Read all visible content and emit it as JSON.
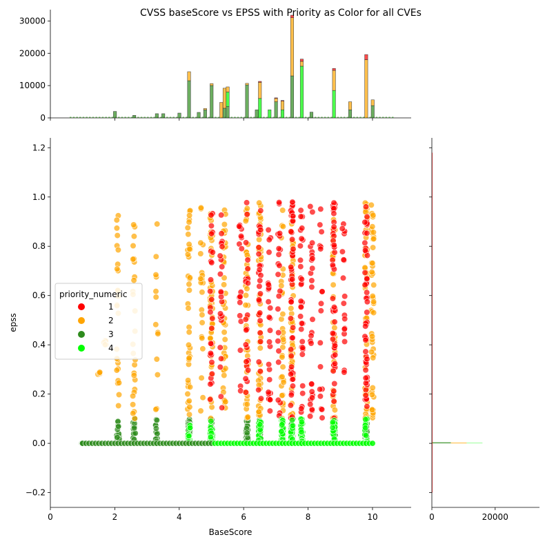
{
  "chart_data": {
    "type": "scatter",
    "title": "CVSS baseScore vs EPSS with Priority as Color for all CVEs",
    "xlabel": "BaseScore",
    "ylabel": "epss",
    "xlim": [
      0,
      11.2
    ],
    "ylim": [
      -0.26,
      1.24
    ],
    "x_ticks": [
      0,
      2,
      4,
      6,
      8,
      10
    ],
    "y_ticks": [
      -0.2,
      0.0,
      0.2,
      0.4,
      0.6,
      0.8,
      1.0,
      1.2
    ],
    "y_tick_labels": [
      "−0.2",
      "0.0",
      "0.2",
      "0.4",
      "0.6",
      "0.8",
      "1.0",
      "1.2"
    ],
    "legend": {
      "title": "priority_numeric",
      "placement": "center-left",
      "entries": [
        {
          "label": "1",
          "color": "#ff0000"
        },
        {
          "label": "2",
          "color": "#ffa500"
        },
        {
          "label": "3",
          "color": "#2e8b1d"
        },
        {
          "label": "4",
          "color": "#00ff00"
        }
      ]
    },
    "series": [
      {
        "name": "1",
        "color": "#ff0000",
        "columns": [
          {
            "x": 5.0,
            "ymin": 0.1,
            "ymax": 0.98,
            "density": 0.5
          },
          {
            "x": 5.3,
            "ymin": 0.1,
            "ymax": 0.98,
            "density": 0.4
          },
          {
            "x": 5.9,
            "ymin": 0.2,
            "ymax": 0.98,
            "density": 0.3
          },
          {
            "x": 6.1,
            "ymin": 0.1,
            "ymax": 0.98,
            "density": 0.4
          },
          {
            "x": 6.5,
            "ymin": 0.1,
            "ymax": 0.98,
            "density": 0.5
          },
          {
            "x": 6.8,
            "ymin": 0.1,
            "ymax": 0.98,
            "density": 0.5
          },
          {
            "x": 7.1,
            "ymin": 0.1,
            "ymax": 0.98,
            "density": 0.4
          },
          {
            "x": 7.5,
            "ymin": 0.1,
            "ymax": 0.98,
            "density": 1.0
          },
          {
            "x": 7.8,
            "ymin": 0.1,
            "ymax": 0.98,
            "density": 0.6
          },
          {
            "x": 8.1,
            "ymin": 0.1,
            "ymax": 0.98,
            "density": 0.5
          },
          {
            "x": 8.4,
            "ymin": 0.1,
            "ymax": 0.98,
            "density": 0.3
          },
          {
            "x": 8.8,
            "ymin": 0.1,
            "ymax": 0.98,
            "density": 1.0
          },
          {
            "x": 9.1,
            "ymin": 0.2,
            "ymax": 0.98,
            "density": 0.3
          },
          {
            "x": 9.8,
            "ymin": 0.1,
            "ymax": 0.98,
            "density": 1.0
          }
        ]
      },
      {
        "name": "2",
        "color": "#ffa500",
        "columns": [
          {
            "x": 1.5,
            "ymin": 0.28,
            "ymax": 0.29,
            "density": 0.05
          },
          {
            "x": 1.7,
            "ymin": 0.4,
            "ymax": 0.42,
            "density": 0.05
          },
          {
            "x": 2.1,
            "ymin": 0.1,
            "ymax": 0.98,
            "density": 0.5
          },
          {
            "x": 2.6,
            "ymin": 0.1,
            "ymax": 0.98,
            "density": 0.5
          },
          {
            "x": 3.3,
            "ymin": 0.1,
            "ymax": 0.98,
            "density": 0.2
          },
          {
            "x": 4.3,
            "ymin": 0.1,
            "ymax": 0.98,
            "density": 0.8
          },
          {
            "x": 4.7,
            "ymin": 0.1,
            "ymax": 0.98,
            "density": 0.4
          },
          {
            "x": 5.0,
            "ymin": 0.1,
            "ymax": 0.98,
            "density": 0.9
          },
          {
            "x": 5.4,
            "ymin": 0.1,
            "ymax": 0.98,
            "density": 0.8
          },
          {
            "x": 6.1,
            "ymin": 0.1,
            "ymax": 0.98,
            "density": 0.8
          },
          {
            "x": 6.5,
            "ymin": 0.1,
            "ymax": 0.98,
            "density": 1.0
          },
          {
            "x": 7.2,
            "ymin": 0.1,
            "ymax": 0.98,
            "density": 0.6
          },
          {
            "x": 7.5,
            "ymin": 0.1,
            "ymax": 0.98,
            "density": 1.0
          },
          {
            "x": 8.8,
            "ymin": 0.1,
            "ymax": 0.98,
            "density": 0.8
          },
          {
            "x": 9.8,
            "ymin": 0.1,
            "ymax": 0.98,
            "density": 1.0
          },
          {
            "x": 10.0,
            "ymin": 0.1,
            "ymax": 0.98,
            "density": 0.9
          }
        ]
      },
      {
        "name": "3",
        "color": "#2e8b1d",
        "columns": [
          {
            "x": 1.0,
            "ymin": 0.0,
            "ymax": 0.0,
            "density": 0.3
          },
          {
            "x": 2.1,
            "ymin": 0.0,
            "ymax": 0.1,
            "density": 0.6
          },
          {
            "x": 2.6,
            "ymin": 0.0,
            "ymax": 0.1,
            "density": 0.5
          },
          {
            "x": 3.3,
            "ymin": 0.0,
            "ymax": 0.1,
            "density": 0.4
          },
          {
            "x": 4.3,
            "ymin": 0.0,
            "ymax": 0.1,
            "density": 0.8
          },
          {
            "x": 5.0,
            "ymin": 0.0,
            "ymax": 0.1,
            "density": 0.8
          },
          {
            "x": 6.1,
            "ymin": 0.0,
            "ymax": 0.1,
            "density": 0.8
          },
          {
            "x": 6.5,
            "ymin": 0.0,
            "ymax": 0.1,
            "density": 0.6
          },
          {
            "x": 7.5,
            "ymin": 0.0,
            "ymax": 0.1,
            "density": 0.6
          },
          {
            "x": 8.8,
            "ymin": 0.0,
            "ymax": 0.1,
            "density": 0.5
          },
          {
            "x": 9.8,
            "ymin": 0.0,
            "ymax": 0.1,
            "density": 0.5
          }
        ]
      },
      {
        "name": "4",
        "color": "#00ff00",
        "columns": [
          {
            "x": 4.3,
            "ymin": 0.0,
            "ymax": 0.08,
            "density": 0.4
          },
          {
            "x": 5.0,
            "ymin": 0.0,
            "ymax": 0.1,
            "density": 0.6
          },
          {
            "x": 6.5,
            "ymin": 0.0,
            "ymax": 0.1,
            "density": 0.6
          },
          {
            "x": 7.2,
            "ymin": 0.0,
            "ymax": 0.1,
            "density": 0.6
          },
          {
            "x": 7.5,
            "ymin": 0.0,
            "ymax": 0.1,
            "density": 0.8
          },
          {
            "x": 7.8,
            "ymin": 0.0,
            "ymax": 0.1,
            "density": 0.8
          },
          {
            "x": 8.8,
            "ymin": 0.0,
            "ymax": 0.1,
            "density": 0.6
          },
          {
            "x": 9.8,
            "ymin": 0.0,
            "ymax": 0.1,
            "density": 0.5
          }
        ]
      }
    ],
    "marginal_x": {
      "type": "histogram",
      "y_ticks": [
        0,
        10000,
        20000,
        30000
      ],
      "ylim": [
        0,
        33500
      ],
      "bars": [
        {
          "x": 2.0,
          "p3": 2000,
          "p4": 0,
          "p2": 0,
          "p1": 0
        },
        {
          "x": 2.6,
          "p3": 800,
          "p4": 0,
          "p2": 0,
          "p1": 0
        },
        {
          "x": 3.3,
          "p3": 1300,
          "p4": 0,
          "p2": 0,
          "p1": 0
        },
        {
          "x": 3.5,
          "p3": 1300,
          "p4": 0,
          "p2": 0,
          "p1": 0
        },
        {
          "x": 4.0,
          "p3": 1500,
          "p4": 0,
          "p2": 0,
          "p1": 0
        },
        {
          "x": 4.3,
          "p3": 11500,
          "p4": 0,
          "p2": 2800,
          "p1": 0
        },
        {
          "x": 4.6,
          "p3": 1700,
          "p4": 0,
          "p2": 0,
          "p1": 0
        },
        {
          "x": 4.8,
          "p3": 2500,
          "p4": 0,
          "p2": 400,
          "p1": 0
        },
        {
          "x": 5.0,
          "p3": 10000,
          "p4": 0,
          "p2": 600,
          "p1": 0
        },
        {
          "x": 5.3,
          "p3": 0,
          "p4": 0,
          "p2": 4800,
          "p1": 0
        },
        {
          "x": 5.4,
          "p3": 3000,
          "p4": 0,
          "p2": 6200,
          "p1": 0
        },
        {
          "x": 5.5,
          "p3": 3500,
          "p4": 4500,
          "p2": 1600,
          "p1": 0
        },
        {
          "x": 6.1,
          "p3": 10200,
          "p4": 0,
          "p2": 500,
          "p1": 0
        },
        {
          "x": 6.4,
          "p3": 2500,
          "p4": 0,
          "p2": 0,
          "p1": 0
        },
        {
          "x": 6.5,
          "p3": 0,
          "p4": 6000,
          "p2": 5000,
          "p1": 300
        },
        {
          "x": 6.8,
          "p3": 0,
          "p4": 2500,
          "p2": 0,
          "p1": 0
        },
        {
          "x": 7.0,
          "p3": 5000,
          "p4": 0,
          "p2": 1000,
          "p1": 200
        },
        {
          "x": 7.2,
          "p3": 0,
          "p4": 2500,
          "p2": 2700,
          "p1": 200
        },
        {
          "x": 7.5,
          "p3": 13000,
          "p4": 0,
          "p2": 18000,
          "p1": 800
        },
        {
          "x": 7.8,
          "p3": 0,
          "p4": 16000,
          "p2": 1500,
          "p1": 700
        },
        {
          "x": 8.1,
          "p3": 1800,
          "p4": 0,
          "p2": 0,
          "p1": 0
        },
        {
          "x": 8.8,
          "p3": 0,
          "p4": 8500,
          "p2": 6200,
          "p1": 600
        },
        {
          "x": 9.3,
          "p3": 2500,
          "p4": 0,
          "p2": 2500,
          "p1": 0
        },
        {
          "x": 9.8,
          "p3": 0,
          "p4": 0,
          "p2": 18000,
          "p1": 1600
        },
        {
          "x": 10.0,
          "p3": 3800,
          "p4": 0,
          "p2": 1800,
          "p1": 0
        }
      ]
    },
    "marginal_y": {
      "type": "histogram",
      "x_ticks": [
        0,
        20000
      ],
      "xlim": [
        0,
        34000
      ]
    }
  }
}
